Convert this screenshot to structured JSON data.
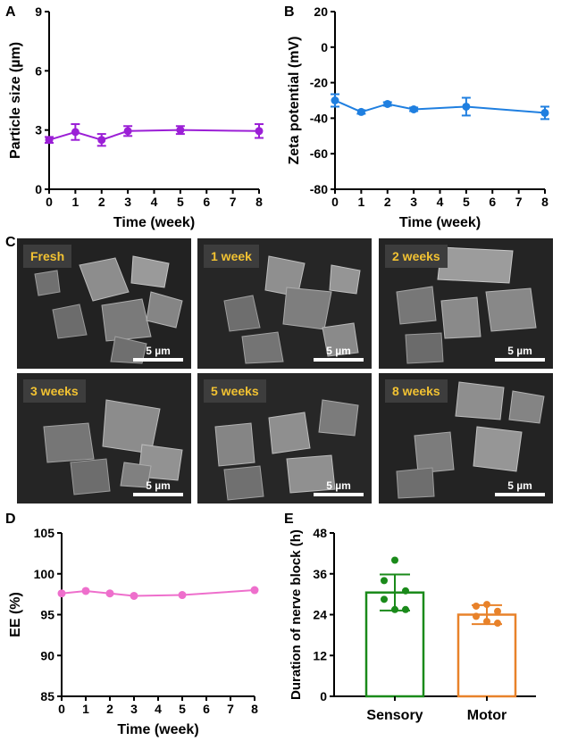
{
  "panels": {
    "A": "A",
    "B": "B",
    "C": "C",
    "D": "D",
    "E": "E"
  },
  "colors": {
    "A": "#9b1fd6",
    "B": "#1f7fe0",
    "D": "#ee6fcc",
    "E_sensory": "#1a8a1a",
    "E_motor": "#e8822a",
    "sem_label": "#f2c232"
  },
  "sem_images": [
    {
      "label": "Fresh",
      "scale_bar": "5 µm"
    },
    {
      "label": "1 week",
      "scale_bar": "5 µm"
    },
    {
      "label": "2 weeks",
      "scale_bar": "5 µm"
    },
    {
      "label": "3 weeks",
      "scale_bar": "5 µm"
    },
    {
      "label": "5 weeks",
      "scale_bar": "5 µm"
    },
    {
      "label": "8 weeks",
      "scale_bar": "5 µm"
    }
  ],
  "chart_data": [
    {
      "panel": "A",
      "type": "line",
      "x": [
        0,
        1,
        2,
        3,
        5,
        8
      ],
      "y": [
        2.5,
        2.9,
        2.5,
        2.95,
        3.0,
        2.95
      ],
      "error": [
        0.15,
        0.4,
        0.3,
        0.25,
        0.2,
        0.35
      ],
      "xlabel": "Time (week)",
      "ylabel": "Particle size (µm)",
      "xlim": [
        0,
        8
      ],
      "ylim": [
        0,
        9
      ],
      "xticks": [
        "0",
        "1",
        "2",
        "3",
        "4",
        "5",
        "6",
        "7",
        "8"
      ],
      "yticks": [
        "0",
        "3",
        "6",
        "9"
      ]
    },
    {
      "panel": "B",
      "type": "line",
      "x": [
        0,
        1,
        2,
        3,
        5,
        8
      ],
      "y": [
        -30,
        -36.5,
        -32,
        -35,
        -33.5,
        -37
      ],
      "error": [
        3.5,
        1.0,
        1.0,
        1.0,
        5.0,
        3.5
      ],
      "xlabel": "Time (week)",
      "ylabel": "Zeta potential (mV)",
      "xlim": [
        0,
        8
      ],
      "ylim": [
        -80,
        20
      ],
      "xticks": [
        "0",
        "1",
        "2",
        "3",
        "4",
        "5",
        "6",
        "7",
        "8"
      ],
      "yticks": [
        "20",
        "0",
        "-20",
        "-40",
        "-60",
        "-80"
      ]
    },
    {
      "panel": "D",
      "type": "line",
      "x": [
        0,
        1,
        2,
        3,
        5,
        8
      ],
      "y": [
        97.6,
        97.9,
        97.6,
        97.3,
        97.4,
        98.0
      ],
      "xlabel": "Time (week)",
      "ylabel": "EE  (%)",
      "xlim": [
        0,
        8
      ],
      "ylim": [
        85,
        105
      ],
      "xticks": [
        "0",
        "1",
        "2",
        "3",
        "4",
        "5",
        "6",
        "7",
        "8"
      ],
      "yticks": [
        "85",
        "90",
        "95",
        "100",
        "105"
      ]
    },
    {
      "panel": "E",
      "type": "bar",
      "categories": [
        "Sensory",
        "Motor"
      ],
      "values": [
        30.5,
        24
      ],
      "error": [
        5.3,
        2.8
      ],
      "points": [
        [
          40,
          34,
          31,
          28.5,
          25.5,
          25.5
        ],
        [
          27,
          26.5,
          25,
          23.5,
          22,
          21.5
        ]
      ],
      "ylabel": "Duration of nerve block (h)",
      "ylim": [
        0,
        48
      ],
      "yticks": [
        "0",
        "12",
        "24",
        "36",
        "48"
      ]
    }
  ]
}
